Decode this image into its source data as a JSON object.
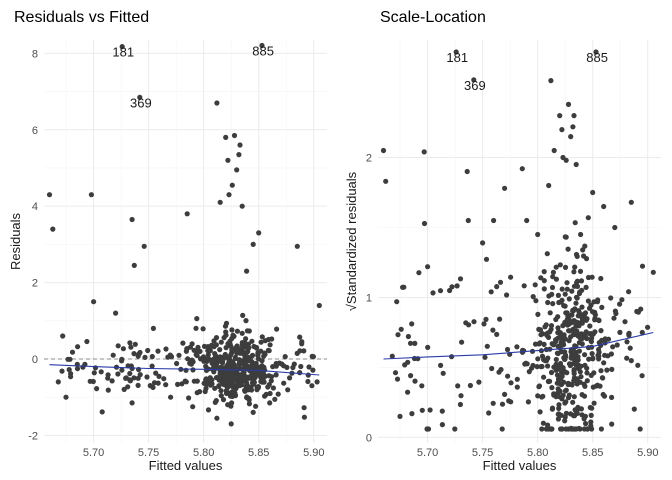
{
  "chart_data": [
    {
      "type": "scatter",
      "title": "Residuals vs Fitted",
      "xlabel": "Fitted values",
      "ylabel": "Residuals",
      "xlim": [
        5.655,
        5.912
      ],
      "ylim": [
        -2.2,
        8.35
      ],
      "xticks": [
        5.7,
        5.75,
        5.8,
        5.85,
        5.9
      ],
      "xtick_labels": [
        "5.70",
        "5.75",
        "5.80",
        "5.85",
        "5.90"
      ],
      "yticks": [
        -2,
        0,
        2,
        4,
        6,
        8
      ],
      "ytick_labels": [
        "-2",
        "0",
        "2",
        "4",
        "6",
        "8"
      ],
      "grid": true,
      "reference_line": {
        "y": 0,
        "style": "dashed",
        "color": "#8c8c8c"
      },
      "point_color": "#3d3d3d",
      "trend_color": "#2b3aa8",
      "trend_line": [
        [
          5.66,
          -0.15
        ],
        [
          5.7,
          -0.2
        ],
        [
          5.75,
          -0.25
        ],
        [
          5.8,
          -0.27
        ],
        [
          5.85,
          -0.3
        ],
        [
          5.905,
          -0.42
        ]
      ],
      "labeled_points": [
        {
          "label": "181",
          "x": 5.727,
          "y": 8.05
        },
        {
          "label": "885",
          "x": 5.854,
          "y": 8.08
        },
        {
          "label": "369",
          "x": 5.743,
          "y": 6.72
        }
      ],
      "outlier_points": [
        [
          5.66,
          4.3
        ],
        [
          5.663,
          3.4
        ],
        [
          5.698,
          4.3
        ],
        [
          5.735,
          3.65
        ],
        [
          5.737,
          2.45
        ],
        [
          5.746,
          2.95
        ],
        [
          5.785,
          3.8
        ],
        [
          5.812,
          6.7
        ],
        [
          5.82,
          5.8
        ],
        [
          5.828,
          5.85
        ],
        [
          5.833,
          5.6
        ],
        [
          5.832,
          5.35
        ],
        [
          5.822,
          5.2
        ],
        [
          5.83,
          4.95
        ],
        [
          5.826,
          4.55
        ],
        [
          5.823,
          4.3
        ],
        [
          5.815,
          4.1
        ],
        [
          5.835,
          4.0
        ],
        [
          5.845,
          3.0
        ],
        [
          5.85,
          3.3
        ],
        [
          5.839,
          2.3
        ],
        [
          5.885,
          2.95
        ],
        [
          5.905,
          1.4
        ],
        [
          5.672,
          0.6
        ],
        [
          5.668,
          -0.6
        ],
        [
          5.675,
          -1.0
        ],
        [
          5.812,
          -1.55
        ],
        [
          5.845,
          -1.4
        ],
        [
          5.903,
          -0.6
        ],
        [
          5.735,
          -1.15
        ],
        [
          5.77,
          -1.0
        ],
        [
          5.79,
          -1.25
        ],
        [
          5.825,
          -1.7
        ],
        [
          5.86,
          -1.15
        ],
        [
          5.7,
          1.5
        ],
        [
          5.72,
          1.2
        ]
      ],
      "dense_region": {
        "x_center": 5.83,
        "x_sd": 0.018,
        "x_min": 5.67,
        "x_max": 5.9,
        "y_center": -0.25,
        "y_sd": 0.45,
        "count": 520
      }
    },
    {
      "type": "scatter",
      "title": "Scale-Location",
      "xlabel": "Fitted values",
      "ylabel": "√Standardized residuals",
      "xlim": [
        5.655,
        5.912
      ],
      "ylim": [
        -0.04,
        2.84
      ],
      "xticks": [
        5.7,
        5.75,
        5.8,
        5.85,
        5.9
      ],
      "xtick_labels": [
        "5.70",
        "5.75",
        "5.80",
        "5.85",
        "5.90"
      ],
      "yticks": [
        0,
        1,
        2
      ],
      "ytick_labels": [
        "0",
        "1",
        "2"
      ],
      "grid": true,
      "point_color": "#3d3d3d",
      "trend_color": "#2b3aa8",
      "trend_line": [
        [
          5.66,
          0.56
        ],
        [
          5.7,
          0.575
        ],
        [
          5.75,
          0.59
        ],
        [
          5.8,
          0.62
        ],
        [
          5.85,
          0.65
        ],
        [
          5.905,
          0.75
        ]
      ],
      "labeled_points": [
        {
          "label": "181",
          "x": 5.727,
          "y": 2.72
        },
        {
          "label": "885",
          "x": 5.854,
          "y": 2.72
        },
        {
          "label": "369",
          "x": 5.743,
          "y": 2.52
        }
      ],
      "outlier_points": [
        [
          5.66,
          2.05
        ],
        [
          5.662,
          1.83
        ],
        [
          5.697,
          2.04
        ],
        [
          5.736,
          1.9
        ],
        [
          5.737,
          1.55
        ],
        [
          5.75,
          1.39
        ],
        [
          5.786,
          1.92
        ],
        [
          5.77,
          1.78
        ],
        [
          5.812,
          2.55
        ],
        [
          5.82,
          2.3
        ],
        [
          5.828,
          2.38
        ],
        [
          5.833,
          2.3
        ],
        [
          5.832,
          2.22
        ],
        [
          5.822,
          2.2
        ],
        [
          5.83,
          2.15
        ],
        [
          5.815,
          2.05
        ],
        [
          5.823,
          2.0
        ],
        [
          5.835,
          1.95
        ],
        [
          5.846,
          1.57
        ],
        [
          5.85,
          1.75
        ],
        [
          5.839,
          1.45
        ],
        [
          5.885,
          1.68
        ],
        [
          5.905,
          1.18
        ],
        [
          5.672,
          0.97
        ],
        [
          5.668,
          0.58
        ],
        [
          5.675,
          0.15
        ],
        [
          5.7,
          1.22
        ],
        [
          5.76,
          1.55
        ],
        [
          5.79,
          1.55
        ],
        [
          5.8,
          1.45
        ],
        [
          5.81,
          1.8
        ],
        [
          5.86,
          1.65
        ],
        [
          5.87,
          1.5
        ],
        [
          5.895,
          0.75
        ],
        [
          5.89,
          0.9
        ],
        [
          5.72,
          1.05
        ]
      ],
      "dense_region": {
        "x_center": 5.83,
        "x_sd": 0.018,
        "x_min": 5.67,
        "x_max": 5.9,
        "y_center": 0.62,
        "y_sd": 0.32,
        "count": 520
      }
    }
  ]
}
